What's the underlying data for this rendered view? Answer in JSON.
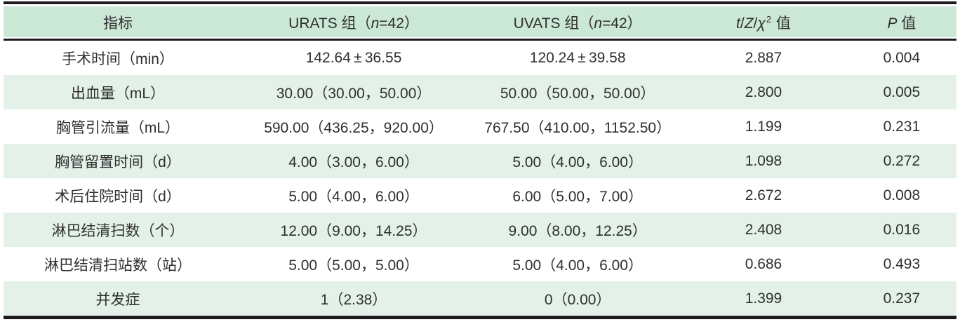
{
  "meta": {
    "kind": "statistical-comparison-table",
    "colors": {
      "header_bg": "#cbe7d5",
      "row_alt_bg": "#e3f1e9",
      "row_bg": "#ffffff",
      "rule": "#1c1c1c",
      "text": "#2f2f2f"
    }
  },
  "header": {
    "indicator": "指标",
    "urats": {
      "pre": "URATS 组（",
      "n": "n",
      "post": "=42）"
    },
    "uvats": {
      "pre": "UVATS 组（",
      "n": "n",
      "post": "=42）"
    },
    "stat": {
      "t": "t",
      "slash1": "/",
      "z": "Z",
      "slash2": "/",
      "chi": "χ",
      "sup": "2",
      "label": " 值"
    },
    "p": {
      "p": "P",
      "label": " 值"
    }
  },
  "rows": [
    {
      "indicator": "手术时间（min）",
      "urats": "142.64 ± 36.55",
      "uvats": "120.24 ± 39.58",
      "stat": "2.887",
      "p": "0.004"
    },
    {
      "indicator": "出血量（mL）",
      "urats": "30.00（30.00，50.00）",
      "uvats": "50.00（50.00，50.00）",
      "stat": "2.800",
      "p": "0.005"
    },
    {
      "indicator": "胸管引流量（mL）",
      "urats": "590.00（436.25，920.00）",
      "uvats": "767.50（410.00，1152.50）",
      "stat": "1.199",
      "p": "0.231"
    },
    {
      "indicator": "胸管留置时间（d）",
      "urats": "4.00（3.00，6.00）",
      "uvats": "5.00（4.00，6.00）",
      "stat": "1.098",
      "p": "0.272"
    },
    {
      "indicator": "术后住院时间（d）",
      "urats": "5.00（4.00，6.00）",
      "uvats": "6.00（5.00，7.00）",
      "stat": "2.672",
      "p": "0.008"
    },
    {
      "indicator": "淋巴结清扫数（个）",
      "urats": "12.00（9.00，14.25）",
      "uvats": "9.00（8.00，12.25）",
      "stat": "2.408",
      "p": "0.016"
    },
    {
      "indicator": "淋巴结清扫站数（站）",
      "urats": "5.00（5.00，5.00）",
      "uvats": "5.00（4.00，6.00）",
      "stat": "0.686",
      "p": "0.493"
    },
    {
      "indicator": "并发症",
      "urats": "1（2.38）",
      "uvats": "0（0.00）",
      "stat": "1.399",
      "p": "0.237"
    }
  ]
}
